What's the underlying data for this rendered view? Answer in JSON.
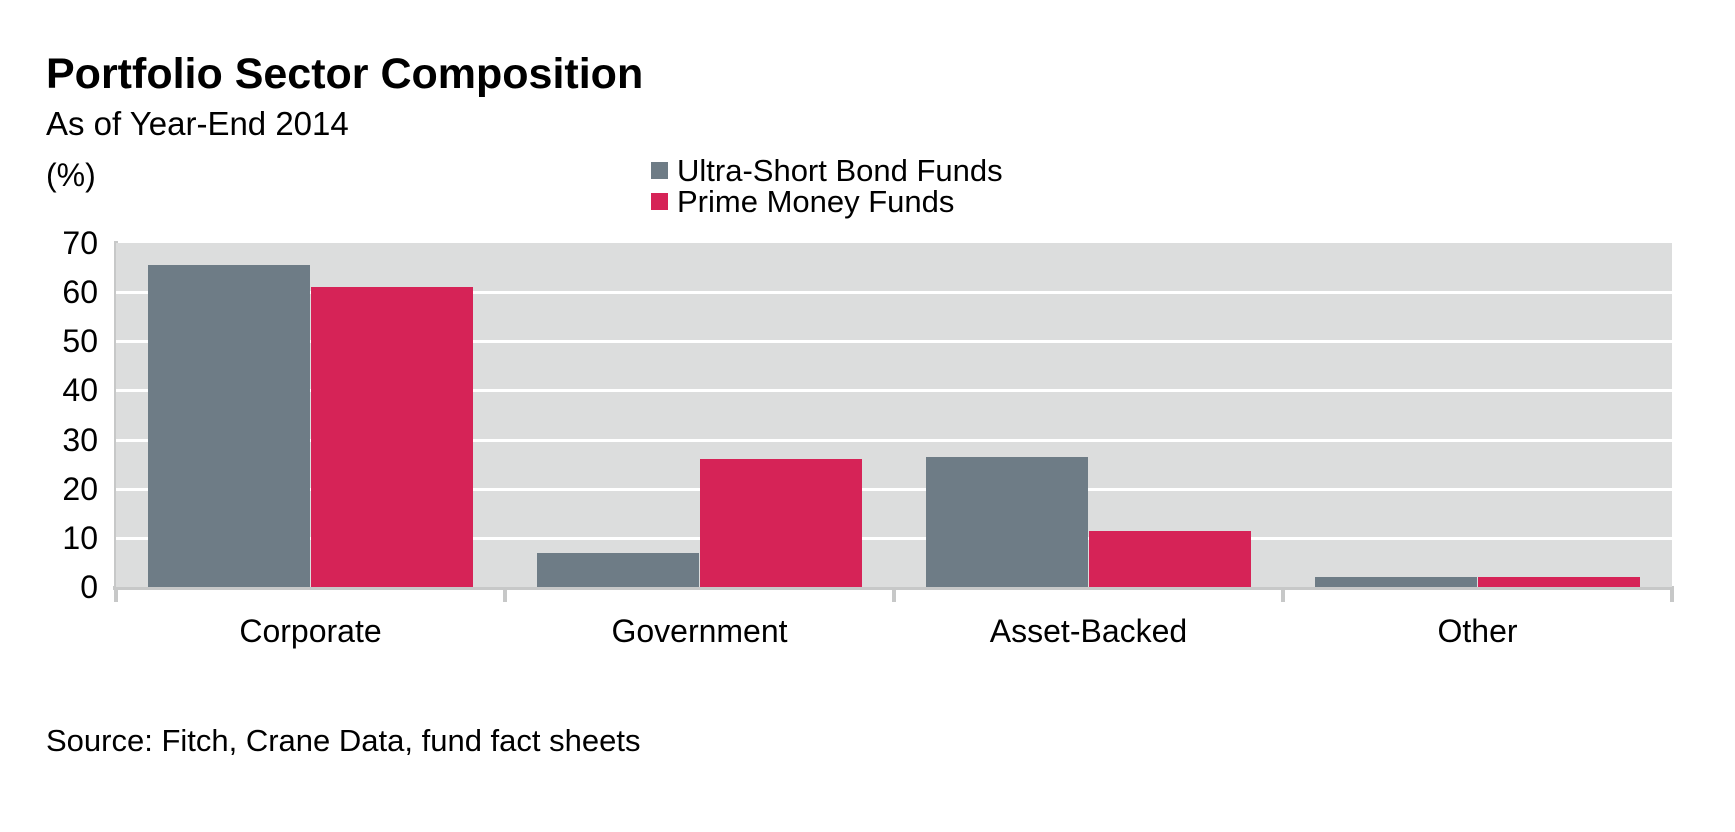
{
  "header": {
    "title": "Portfolio Sector Composition",
    "subtitle": "As of Year-End 2014",
    "unit_label": "(%)"
  },
  "legend": {
    "items": [
      {
        "label": "Ultra-Short Bond Funds",
        "color": "#6E7C86"
      },
      {
        "label": "Prime Money Funds",
        "color": "#D62357"
      }
    ]
  },
  "source_note": "Source: Fitch, Crane Data, fund fact sheets",
  "colors": {
    "plot_background": "#DCDDDD",
    "gridline": "#FFFFFF",
    "axis_line": "#C7C8C8",
    "text": "#000000"
  },
  "chart_data": {
    "type": "bar",
    "title": "Portfolio Sector Composition",
    "subtitle": "As of Year-End 2014",
    "categories": [
      "Corporate",
      "Government",
      "Asset-Backed",
      "Other"
    ],
    "series": [
      {
        "name": "Ultra-Short Bond Funds",
        "color": "#6E7C86",
        "values": [
          65.5,
          7,
          26.5,
          2
        ]
      },
      {
        "name": "Prime Money Funds",
        "color": "#D62357",
        "values": [
          61,
          26,
          11.5,
          2
        ]
      }
    ],
    "xlabel": "",
    "ylabel": "(%)",
    "ylim": [
      0,
      70
    ],
    "yticks": [
      0,
      10,
      20,
      30,
      40,
      50,
      60,
      70
    ],
    "grid": true,
    "gridline_color": "#FFFFFF",
    "plot_background": "#DCDDDD",
    "legend_position": "top-center",
    "annotation": "Source: Fitch, Crane Data, fund fact sheets"
  }
}
